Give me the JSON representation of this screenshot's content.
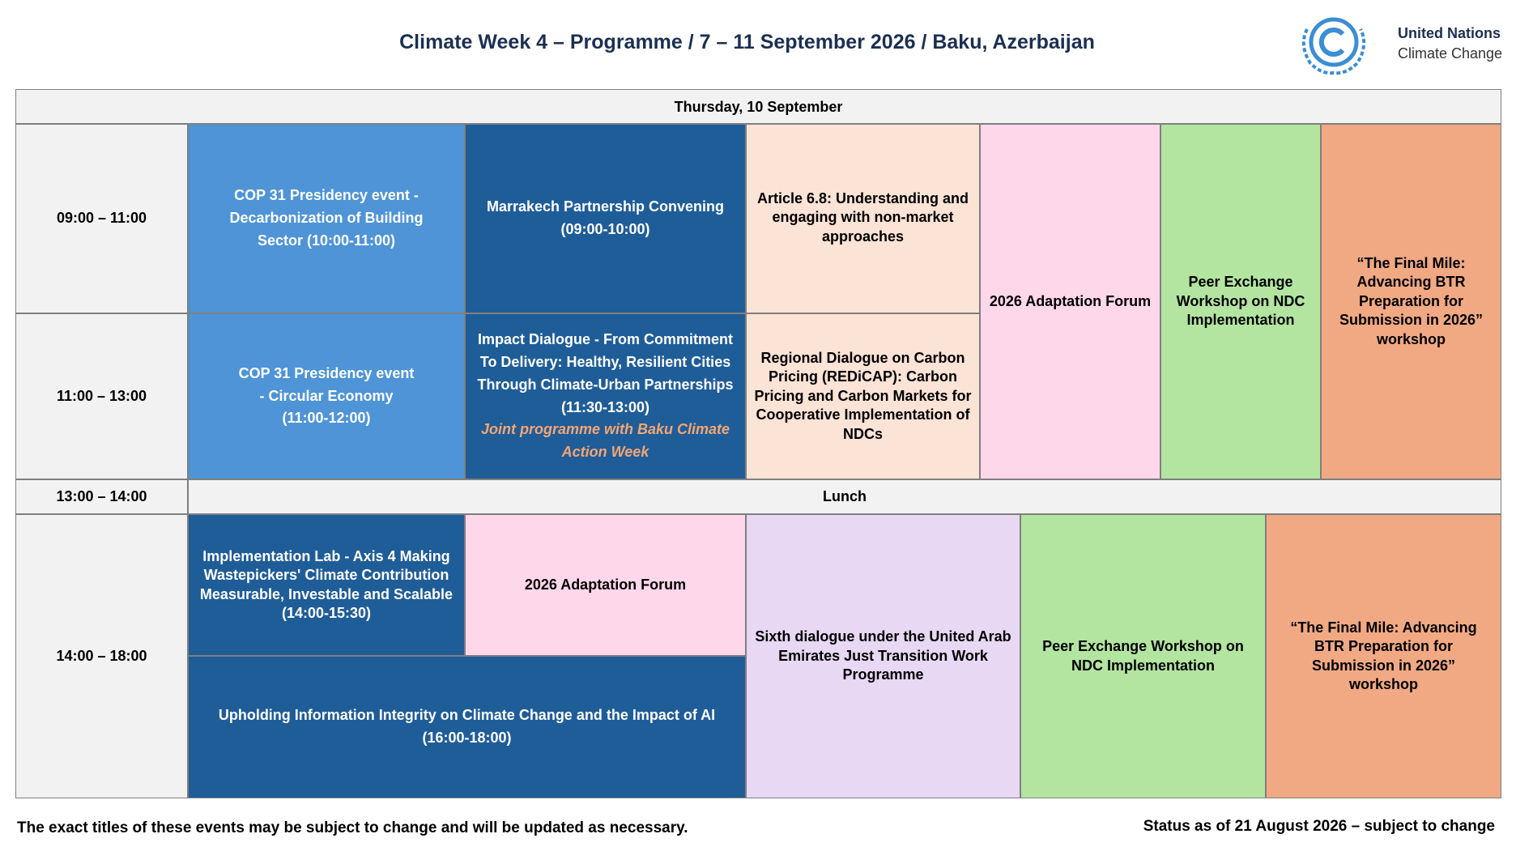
{
  "header": {
    "title": "Climate Week 4 – Programme / 7 – 11 September 2026 / Baku, Azerbaijan",
    "org_line1": "United Nations",
    "org_line2": "Climate Change"
  },
  "table": {
    "day": "Thursday, 10 September",
    "times": [
      "09:00 – 11:00",
      "11:00 – 13:00",
      "13:00 – 14:00",
      "14:00 – 18:00"
    ],
    "lunch": "Lunch",
    "sessions": [
      {
        "title": "COP 31 Presidency event - Decarbonization of Building Sector (10:00-11:00)"
      },
      {
        "title": "Marrakech Partnership Convening",
        "time": "(09:00-10:00)"
      },
      {
        "title": "Article 6.8: Understanding and engaging with non-market approaches"
      },
      {
        "title": "2026 Adaptation Forum"
      },
      {
        "title": "Peer Exchange Workshop on NDC Implementation"
      },
      {
        "title": "“The Final Mile: Advancing BTR Preparation for Submission in 2026” workshop"
      },
      {
        "title": "COP 31 Presidency event - Circular Economy",
        "time": "(11:00-12:00)"
      },
      {
        "title": "Impact Dialogue - From Commitment To Delivery: Healthy, Resilient Cities Through Climate-Urban Partnerships",
        "time": "(11:30-13:00)",
        "note": "Joint programme with Baku Climate Action Week"
      },
      {
        "title": "Regional Dialogue on Carbon Pricing (REDiCAP): Carbon Pricing and Carbon Markets for Cooperative Implementation of NDCs"
      },
      {
        "title": "Implementation Lab - Axis 4 Making Wastepickers' Climate Contribution Measurable, Investable and Scalable",
        "time": "(14:00-15:30)"
      },
      {
        "title": "2026 Adaptation Forum"
      },
      {
        "title": "Upholding Information Integrity on Climate Change and the Impact of AI",
        "time": "(16:00-18:00)"
      },
      {
        "title": "Sixth dialogue under the United Arab Emirates Just Transition Work Programme"
      },
      {
        "title": "Peer Exchange Workshop on NDC Implementation"
      },
      {
        "title": "“The Final Mile: Advancing BTR Preparation for Submission in 2026” workshop"
      }
    ]
  },
  "footer": {
    "note": "The exact titles of these events may be subject to change and will be updated as necessary.",
    "status": "Status as of 21 August 2026 – subject to change"
  }
}
